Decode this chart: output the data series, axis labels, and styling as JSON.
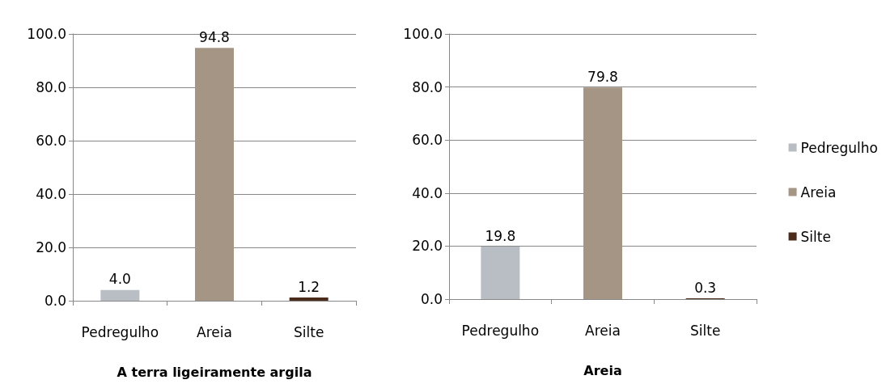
{
  "chart_data": [
    {
      "type": "bar",
      "xlabel": "A terra ligeiramente argila",
      "categories": [
        "Pedregulho",
        "Areia",
        "Silte"
      ],
      "values": [
        4.0,
        94.8,
        1.2
      ],
      "value_labels": [
        "4.0",
        "94.8",
        "1.2"
      ],
      "colors": [
        "#b9bdc4",
        "#a59585",
        "#4b2c1c"
      ],
      "ylim": [
        0,
        100
      ],
      "yticks": [
        {
          "value": 0,
          "label": "0.0"
        },
        {
          "value": 20,
          "label": "20.0"
        },
        {
          "value": 40,
          "label": "40.0"
        },
        {
          "value": 60,
          "label": "60.0"
        },
        {
          "value": 80,
          "label": "80.0"
        },
        {
          "value": 100,
          "label": "100.0"
        }
      ],
      "grid": "y",
      "legend": false
    },
    {
      "type": "bar",
      "xlabel": "Areia",
      "categories": [
        "Pedregulho",
        "Areia",
        "Silte"
      ],
      "series": [
        {
          "name": "Pedregulho",
          "color": "#b9bdc4",
          "values": [
            19.8,
            null,
            null
          ],
          "value_labels": [
            "19.8",
            null,
            null
          ]
        },
        {
          "name": "Areia",
          "color": "#a59585",
          "values": [
            null,
            79.8,
            null
          ],
          "value_labels": [
            null,
            "79.8",
            null
          ]
        },
        {
          "name": "Silte",
          "color": "#4b2c1c",
          "values": [
            null,
            null,
            0.3
          ],
          "value_labels": [
            null,
            null,
            "0.3"
          ]
        }
      ],
      "ylim": [
        0,
        100
      ],
      "yticks": [
        {
          "value": 0,
          "label": "0.0"
        },
        {
          "value": 20,
          "label": "20.0"
        },
        {
          "value": 40,
          "label": "40.0"
        },
        {
          "value": 60,
          "label": "60.0"
        },
        {
          "value": 80,
          "label": "80.0"
        },
        {
          "value": 100,
          "label": "100.0"
        }
      ],
      "grid": "y",
      "legend": "right"
    }
  ]
}
